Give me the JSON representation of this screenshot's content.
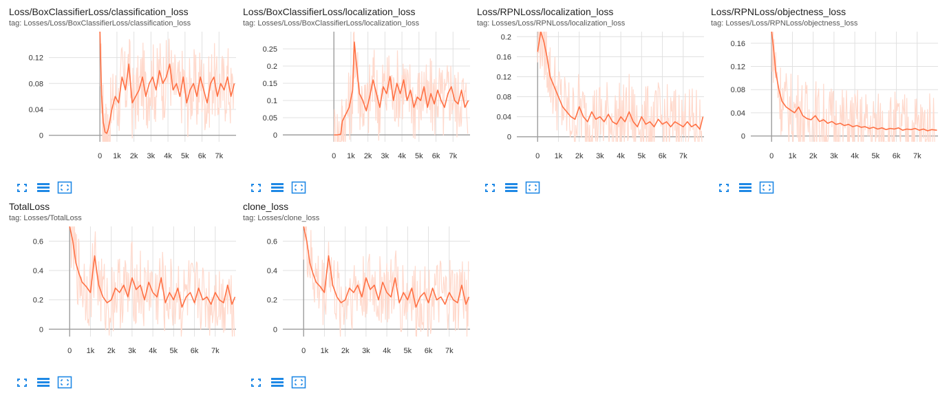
{
  "charts": [
    {
      "title": "Loss/BoxClassifierLoss/classification_loss",
      "tag": "tag: Losses/Loss/BoxClassifierLoss/classification_loss"
    },
    {
      "title": "Loss/BoxClassifierLoss/localization_loss",
      "tag": "tag: Losses/Loss/BoxClassifierLoss/localization_loss"
    },
    {
      "title": "Loss/RPNLoss/localization_loss",
      "tag": "tag: Losses/Loss/RPNLoss/localization_loss"
    },
    {
      "title": "Loss/RPNLoss/objectness_loss",
      "tag": "tag: Losses/Loss/RPNLoss/objectness_loss"
    },
    {
      "title": "TotalLoss",
      "tag": "tag: Losses/TotalLoss"
    },
    {
      "title": "clone_loss",
      "tag": "tag: Losses/clone_loss"
    }
  ],
  "icons": {
    "expand": "fullscreen-icon",
    "data": "data-list-icon",
    "fit": "fit-domain-icon"
  },
  "colors": {
    "line": "#ff7043",
    "raw": "#ffd9cc",
    "grid": "#e0e0e0",
    "axis": "#9e9e9e",
    "icon": "#1e88e5"
  },
  "chart_data": [
    {
      "type": "line",
      "title": "Loss/BoxClassifierLoss/classification_loss",
      "xlim": [
        -3000,
        8000
      ],
      "ylim": [
        -0.01,
        0.16
      ],
      "xticks": [
        0,
        1000,
        2000,
        3000,
        4000,
        5000,
        6000,
        7000
      ],
      "xtick_labels": [
        "0",
        "1k",
        "2k",
        "3k",
        "4k",
        "5k",
        "6k",
        "7k"
      ],
      "yticks": [
        0,
        0.04,
        0.08,
        0.12
      ],
      "ytick_labels": [
        "0",
        "0.04",
        "0.08",
        "0.12"
      ],
      "series": [
        {
          "name": "smoothed",
          "x": [
            0,
            100,
            200,
            300,
            400,
            500,
            700,
            900,
            1100,
            1300,
            1500,
            1700,
            1900,
            2100,
            2300,
            2500,
            2700,
            2900,
            3100,
            3300,
            3500,
            3700,
            3900,
            4100,
            4300,
            4500,
            4700,
            4900,
            5100,
            5300,
            5500,
            5700,
            5900,
            6100,
            6300,
            6500,
            6700,
            6900,
            7100,
            7300,
            7500,
            7700,
            7900
          ],
          "y": [
            0.16,
            0.06,
            0.02,
            0.005,
            0.003,
            0.01,
            0.04,
            0.06,
            0.05,
            0.09,
            0.07,
            0.11,
            0.05,
            0.06,
            0.07,
            0.09,
            0.06,
            0.08,
            0.09,
            0.07,
            0.1,
            0.08,
            0.09,
            0.11,
            0.07,
            0.08,
            0.06,
            0.09,
            0.05,
            0.07,
            0.08,
            0.06,
            0.09,
            0.07,
            0.05,
            0.08,
            0.09,
            0.06,
            0.08,
            0.07,
            0.09,
            0.06,
            0.08
          ]
        }
      ]
    },
    {
      "type": "line",
      "title": "Loss/BoxClassifierLoss/localization_loss",
      "xlim": [
        -3000,
        8000
      ],
      "ylim": [
        -0.02,
        0.3
      ],
      "xticks": [
        0,
        1000,
        2000,
        3000,
        4000,
        5000,
        6000,
        7000
      ],
      "xtick_labels": [
        "0",
        "1k",
        "2k",
        "3k",
        "4k",
        "5k",
        "6k",
        "7k"
      ],
      "yticks": [
        0,
        0.05,
        0.1,
        0.15,
        0.2,
        0.25
      ],
      "ytick_labels": [
        "0",
        "0.05",
        "0.1",
        "0.15",
        "0.2",
        "0.25"
      ],
      "series": [
        {
          "name": "smoothed",
          "x": [
            0,
            200,
            400,
            500,
            700,
            900,
            1100,
            1200,
            1300,
            1500,
            1700,
            1900,
            2100,
            2300,
            2500,
            2700,
            2900,
            3100,
            3300,
            3500,
            3700,
            3900,
            4100,
            4300,
            4500,
            4700,
            4900,
            5100,
            5300,
            5500,
            5700,
            5900,
            6100,
            6300,
            6500,
            6700,
            6900,
            7100,
            7300,
            7500,
            7700,
            7900
          ],
          "y": [
            0,
            0,
            0.002,
            0.04,
            0.06,
            0.08,
            0.13,
            0.27,
            0.22,
            0.12,
            0.1,
            0.07,
            0.11,
            0.16,
            0.12,
            0.08,
            0.14,
            0.12,
            0.17,
            0.1,
            0.15,
            0.12,
            0.16,
            0.1,
            0.13,
            0.08,
            0.11,
            0.1,
            0.14,
            0.08,
            0.12,
            0.09,
            0.13,
            0.1,
            0.08,
            0.12,
            0.14,
            0.1,
            0.09,
            0.13,
            0.08,
            0.1
          ]
        }
      ]
    },
    {
      "type": "line",
      "title": "Loss/RPNLoss/localization_loss",
      "xlim": [
        -1000,
        8000
      ],
      "ylim": [
        -0.01,
        0.21
      ],
      "xticks": [
        0,
        1000,
        2000,
        3000,
        4000,
        5000,
        6000,
        7000
      ],
      "xtick_labels": [
        "0",
        "1k",
        "2k",
        "3k",
        "4k",
        "5k",
        "6k",
        "7k"
      ],
      "yticks": [
        0,
        0.04,
        0.08,
        0.12,
        0.16,
        0.2
      ],
      "ytick_labels": [
        "0",
        "0.04",
        "0.08",
        "0.12",
        "0.16",
        "0.2"
      ],
      "series": [
        {
          "name": "smoothed",
          "x": [
            0,
            150,
            300,
            450,
            600,
            800,
            1000,
            1200,
            1400,
            1600,
            1800,
            2000,
            2200,
            2400,
            2600,
            2800,
            3000,
            3200,
            3400,
            3600,
            3800,
            4000,
            4200,
            4400,
            4600,
            4800,
            5000,
            5200,
            5400,
            5600,
            5800,
            6000,
            6200,
            6400,
            6600,
            6800,
            7000,
            7200,
            7400,
            7600,
            7800,
            7950
          ],
          "y": [
            0.17,
            0.21,
            0.19,
            0.16,
            0.12,
            0.1,
            0.08,
            0.06,
            0.05,
            0.04,
            0.035,
            0.06,
            0.04,
            0.03,
            0.05,
            0.035,
            0.04,
            0.03,
            0.045,
            0.03,
            0.025,
            0.04,
            0.03,
            0.05,
            0.03,
            0.02,
            0.04,
            0.025,
            0.03,
            0.02,
            0.035,
            0.025,
            0.03,
            0.02,
            0.03,
            0.025,
            0.02,
            0.03,
            0.02,
            0.025,
            0.015,
            0.04
          ]
        }
      ]
    },
    {
      "type": "line",
      "title": "Loss/RPNLoss/objectness_loss",
      "xlim": [
        -1000,
        8000
      ],
      "ylim": [
        -0.01,
        0.18
      ],
      "xticks": [
        0,
        1000,
        2000,
        3000,
        4000,
        5000,
        6000,
        7000
      ],
      "xtick_labels": [
        "0",
        "1k",
        "2k",
        "3k",
        "4k",
        "5k",
        "6k",
        "7k"
      ],
      "yticks": [
        0,
        0.04,
        0.08,
        0.12,
        0.16
      ],
      "ytick_labels": [
        "0",
        "0.04",
        "0.08",
        "0.12",
        "0.16"
      ],
      "series": [
        {
          "name": "smoothed",
          "x": [
            0,
            100,
            200,
            350,
            500,
            700,
            900,
            1100,
            1300,
            1500,
            1700,
            1900,
            2100,
            2300,
            2500,
            2700,
            2900,
            3100,
            3300,
            3500,
            3700,
            3900,
            4100,
            4300,
            4500,
            4700,
            4900,
            5100,
            5300,
            5500,
            5700,
            5900,
            6100,
            6300,
            6500,
            6700,
            6900,
            7100,
            7300,
            7500,
            7700,
            7950
          ],
          "y": [
            0.18,
            0.15,
            0.11,
            0.08,
            0.06,
            0.05,
            0.045,
            0.04,
            0.05,
            0.035,
            0.03,
            0.028,
            0.035,
            0.025,
            0.028,
            0.022,
            0.025,
            0.02,
            0.022,
            0.018,
            0.02,
            0.016,
            0.018,
            0.015,
            0.016,
            0.013,
            0.015,
            0.012,
            0.014,
            0.011,
            0.013,
            0.012,
            0.014,
            0.01,
            0.012,
            0.011,
            0.013,
            0.01,
            0.012,
            0.009,
            0.011,
            0.01
          ]
        }
      ]
    },
    {
      "type": "line",
      "title": "TotalLoss",
      "xlim": [
        -1000,
        8000
      ],
      "ylim": [
        -0.05,
        0.7
      ],
      "xticks": [
        0,
        1000,
        2000,
        3000,
        4000,
        5000,
        6000,
        7000
      ],
      "xtick_labels": [
        "0",
        "1k",
        "2k",
        "3k",
        "4k",
        "5k",
        "6k",
        "7k"
      ],
      "yticks": [
        0,
        0.2,
        0.4,
        0.6
      ],
      "ytick_labels": [
        "0",
        "0.2",
        "0.4",
        "0.6"
      ],
      "series": [
        {
          "name": "smoothed",
          "x": [
            0,
            150,
            300,
            450,
            600,
            800,
            1000,
            1200,
            1400,
            1600,
            1800,
            2000,
            2200,
            2400,
            2600,
            2800,
            3000,
            3200,
            3400,
            3600,
            3800,
            4000,
            4200,
            4400,
            4600,
            4800,
            5000,
            5200,
            5400,
            5600,
            5800,
            6000,
            6200,
            6400,
            6600,
            6800,
            7000,
            7200,
            7400,
            7600,
            7800,
            7950
          ],
          "y": [
            0.7,
            0.6,
            0.45,
            0.38,
            0.32,
            0.29,
            0.25,
            0.5,
            0.3,
            0.22,
            0.18,
            0.2,
            0.28,
            0.25,
            0.3,
            0.22,
            0.35,
            0.27,
            0.3,
            0.2,
            0.32,
            0.25,
            0.22,
            0.35,
            0.18,
            0.25,
            0.2,
            0.28,
            0.15,
            0.22,
            0.25,
            0.18,
            0.28,
            0.2,
            0.22,
            0.17,
            0.25,
            0.2,
            0.18,
            0.3,
            0.17,
            0.22
          ]
        }
      ]
    },
    {
      "type": "line",
      "title": "clone_loss",
      "xlim": [
        -1000,
        8000
      ],
      "ylim": [
        -0.05,
        0.7
      ],
      "xticks": [
        0,
        1000,
        2000,
        3000,
        4000,
        5000,
        6000,
        7000
      ],
      "xtick_labels": [
        "0",
        "1k",
        "2k",
        "3k",
        "4k",
        "5k",
        "6k",
        "7k"
      ],
      "yticks": [
        0,
        0.2,
        0.4,
        0.6
      ],
      "ytick_labels": [
        "0",
        "0.2",
        "0.4",
        "0.6"
      ],
      "series": [
        {
          "name": "smoothed",
          "x": [
            0,
            150,
            300,
            450,
            600,
            800,
            1000,
            1200,
            1400,
            1600,
            1800,
            2000,
            2200,
            2400,
            2600,
            2800,
            3000,
            3200,
            3400,
            3600,
            3800,
            4000,
            4200,
            4400,
            4600,
            4800,
            5000,
            5200,
            5400,
            5600,
            5800,
            6000,
            6200,
            6400,
            6600,
            6800,
            7000,
            7200,
            7400,
            7600,
            7800,
            7950
          ],
          "y": [
            0.7,
            0.6,
            0.45,
            0.38,
            0.32,
            0.29,
            0.25,
            0.5,
            0.3,
            0.22,
            0.18,
            0.2,
            0.28,
            0.25,
            0.3,
            0.22,
            0.35,
            0.27,
            0.3,
            0.2,
            0.32,
            0.25,
            0.22,
            0.35,
            0.18,
            0.25,
            0.2,
            0.28,
            0.15,
            0.22,
            0.25,
            0.18,
            0.28,
            0.2,
            0.22,
            0.17,
            0.25,
            0.2,
            0.18,
            0.3,
            0.17,
            0.22
          ]
        }
      ]
    }
  ]
}
